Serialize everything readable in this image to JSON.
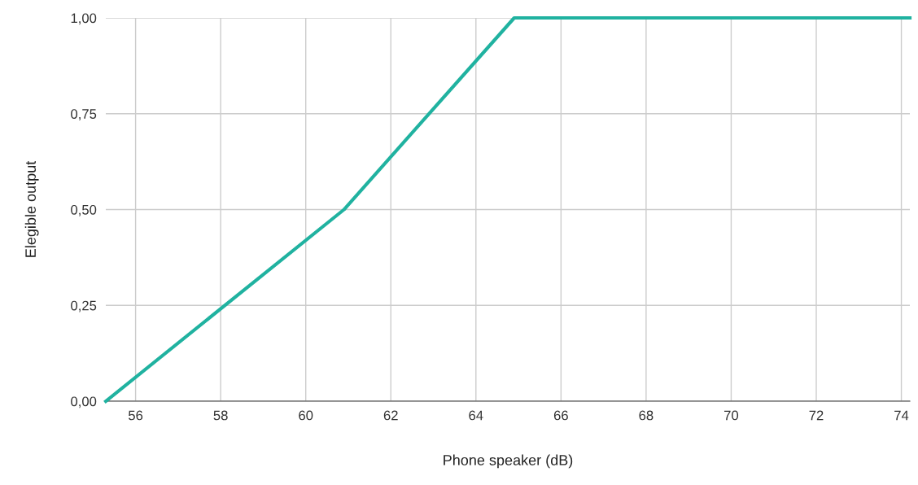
{
  "chart_data": {
    "type": "line",
    "xlabel": "Phone speaker (dB)",
    "ylabel": "Elegible output",
    "series": [
      {
        "color": "#20b2a0",
        "x": [
          55.3,
          60.9,
          64.9,
          74.2
        ],
        "values": [
          0,
          0.5,
          1,
          1
        ]
      }
    ],
    "xlim": [
      55.3,
      74.2
    ],
    "xticks": [
      56,
      58,
      60,
      62,
      64,
      66,
      68,
      70,
      72,
      74
    ],
    "ylim": [
      0,
      1
    ],
    "yticks": [
      {
        "value": 0,
        "label": "0,00"
      },
      {
        "value": 0.25,
        "label": "0,25"
      },
      {
        "value": 0.5,
        "label": "0,50"
      },
      {
        "value": 0.75,
        "label": "0,75"
      },
      {
        "value": 1,
        "label": "1,00"
      }
    ],
    "grid": true,
    "marker": "none",
    "line_style": "solid"
  }
}
